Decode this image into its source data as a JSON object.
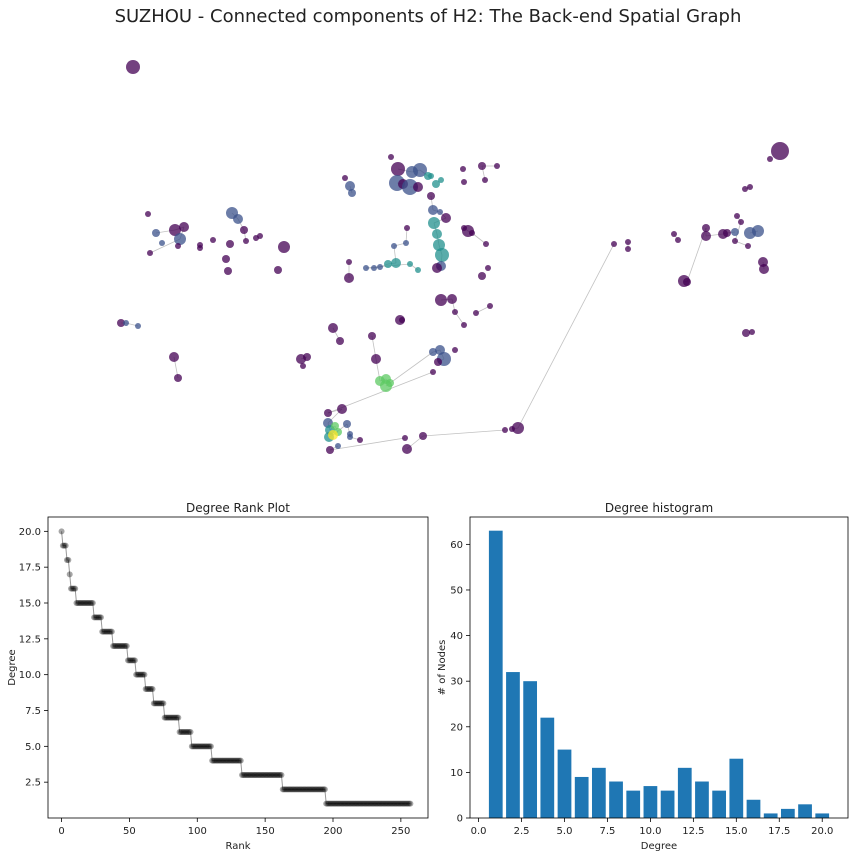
{
  "figure": {
    "title": "SUZHOU - Connected components of H2: The Back-end Spatial Graph"
  },
  "chart_data": [
    {
      "type": "network",
      "title": "",
      "colormap": [
        "#440154",
        "#3b528b",
        "#21908d",
        "#5dc963",
        "#fde725"
      ],
      "edge_color": "#999999"
    },
    {
      "type": "scatter",
      "title": "Degree Rank Plot",
      "xlabel": "Rank",
      "ylabel": "Degree",
      "xlim": [
        -10,
        270
      ],
      "ylim": [
        0,
        21
      ],
      "xticks": [
        0,
        50,
        100,
        150,
        200,
        250
      ],
      "yticks": [
        2.5,
        5.0,
        7.5,
        10.0,
        12.5,
        15.0,
        17.5,
        20.0
      ],
      "xtick_labels": [
        "0",
        "50",
        "100",
        "150",
        "200",
        "250"
      ],
      "ytick_labels": [
        "2.5",
        "5.0",
        "7.5",
        "10.0",
        "12.5",
        "15.0",
        "17.5",
        "20.0"
      ],
      "marker_color": "#000000",
      "degree_counts": [
        {
          "degree": 20,
          "count": 1
        },
        {
          "degree": 19,
          "count": 3
        },
        {
          "degree": 18,
          "count": 2
        },
        {
          "degree": 17,
          "count": 1
        },
        {
          "degree": 16,
          "count": 4
        },
        {
          "degree": 15,
          "count": 13
        },
        {
          "degree": 14,
          "count": 6
        },
        {
          "degree": 13,
          "count": 8
        },
        {
          "degree": 12,
          "count": 11
        },
        {
          "degree": 11,
          "count": 6
        },
        {
          "degree": 10,
          "count": 7
        },
        {
          "degree": 9,
          "count": 6
        },
        {
          "degree": 8,
          "count": 8
        },
        {
          "degree": 7,
          "count": 11
        },
        {
          "degree": 6,
          "count": 9
        },
        {
          "degree": 5,
          "count": 15
        },
        {
          "degree": 4,
          "count": 22
        },
        {
          "degree": 3,
          "count": 30
        },
        {
          "degree": 2,
          "count": 32
        },
        {
          "degree": 1,
          "count": 63
        }
      ]
    },
    {
      "type": "bar",
      "title": "Degree histogram",
      "xlabel": "Degree",
      "ylabel": "# of Nodes",
      "categories": [
        1,
        2,
        3,
        4,
        5,
        6,
        7,
        8,
        9,
        10,
        11,
        12,
        13,
        14,
        15,
        16,
        17,
        18,
        19,
        20
      ],
      "values": [
        63,
        32,
        30,
        22,
        15,
        9,
        11,
        8,
        6,
        7,
        6,
        11,
        8,
        6,
        13,
        4,
        1,
        2,
        3,
        1
      ],
      "xlim": [
        -0.5,
        21.5
      ],
      "ylim": [
        0,
        66
      ],
      "xticks": [
        0,
        2.5,
        5,
        7.5,
        10,
        12.5,
        15,
        17.5,
        20
      ],
      "yticks": [
        0,
        10,
        20,
        30,
        40,
        50,
        60
      ],
      "xtick_labels": [
        "0.0",
        "2.5",
        "5.0",
        "7.5",
        "10.0",
        "12.5",
        "15.0",
        "17.5",
        "20.0"
      ],
      "ytick_labels": [
        "0",
        "10",
        "20",
        "30",
        "40",
        "50",
        "60"
      ],
      "bar_color": "#1f77b4"
    }
  ]
}
